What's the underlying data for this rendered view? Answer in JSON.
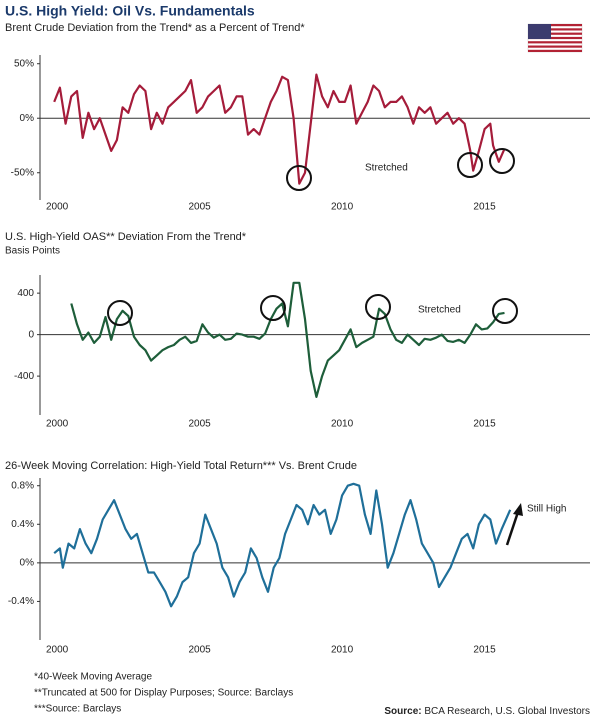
{
  "title": "U.S. High Yield: Oil Vs. Fundamentals",
  "footnotes": [
    "*40-Week Moving Average",
    "**Truncated at 500 for Display Purposes; Source: Barclays",
    "***Source: Barclays"
  ],
  "source_label": "Source:",
  "source": "BCA Research, U.S. Global Investors",
  "chart_data": [
    {
      "type": "line",
      "title": "Brent Crude Deviation from the Trend* as a Percent of Trend*",
      "color": "#a51c3a",
      "x": [
        1999.9,
        2000.1,
        2000.3,
        2000.5,
        2000.7,
        2000.9,
        2001.1,
        2001.3,
        2001.5,
        2001.7,
        2001.9,
        2002.1,
        2002.3,
        2002.5,
        2002.7,
        2002.9,
        2003.1,
        2003.3,
        2003.5,
        2003.7,
        2003.9,
        2004.1,
        2004.3,
        2004.5,
        2004.7,
        2004.9,
        2005.1,
        2005.3,
        2005.5,
        2005.7,
        2005.9,
        2006.1,
        2006.3,
        2006.5,
        2006.7,
        2006.9,
        2007.1,
        2007.3,
        2007.5,
        2007.7,
        2007.9,
        2008.1,
        2008.3,
        2008.5,
        2008.7,
        2008.9,
        2009.1,
        2009.3,
        2009.5,
        2009.7,
        2009.9,
        2010.1,
        2010.3,
        2010.5,
        2010.7,
        2010.9,
        2011.1,
        2011.3,
        2011.5,
        2011.7,
        2011.9,
        2012.1,
        2012.3,
        2012.5,
        2012.7,
        2012.9,
        2013.1,
        2013.3,
        2013.5,
        2013.7,
        2013.9,
        2014.1,
        2014.3,
        2014.5,
        2014.6,
        2014.8,
        2015.0,
        2015.2,
        2015.3,
        2015.5,
        2015.7
      ],
      "values": [
        15,
        28,
        -5,
        20,
        25,
        -18,
        5,
        -10,
        0,
        -15,
        -30,
        -20,
        10,
        5,
        22,
        30,
        25,
        -10,
        5,
        -5,
        10,
        15,
        20,
        25,
        35,
        5,
        10,
        20,
        25,
        30,
        5,
        10,
        20,
        20,
        -15,
        -10,
        -15,
        0,
        15,
        25,
        38,
        35,
        0,
        -60,
        -50,
        -5,
        40,
        20,
        10,
        25,
        15,
        15,
        30,
        -5,
        5,
        15,
        30,
        25,
        10,
        15,
        15,
        20,
        10,
        -5,
        10,
        5,
        10,
        -5,
        0,
        5,
        -5,
        0,
        -5,
        -30,
        -48,
        -30,
        -10,
        -5,
        -25,
        -40,
        -28
      ],
      "xlim": [
        1999.4,
        2018.7
      ],
      "xticks": [
        2000,
        2005,
        2010,
        2015
      ],
      "ylim": [
        -75,
        58
      ],
      "yticks": [
        {
          "value": 50,
          "label": "50%"
        },
        {
          "value": 0,
          "label": "0%"
        },
        {
          "value": -50,
          "label": "-50%"
        }
      ],
      "zero_line": true,
      "annotations": [
        "Stretched"
      ]
    },
    {
      "type": "line",
      "title": "U.S. High-Yield OAS** Deviation From the Trend*",
      "subtitle": "Basis Points",
      "color": "#1e5e3a",
      "x": [
        2000.5,
        2000.7,
        2000.9,
        2001.1,
        2001.3,
        2001.5,
        2001.7,
        2001.9,
        2002.1,
        2002.3,
        2002.5,
        2002.7,
        2002.9,
        2003.1,
        2003.3,
        2003.5,
        2003.7,
        2003.9,
        2004.1,
        2004.3,
        2004.5,
        2004.7,
        2004.9,
        2005.1,
        2005.3,
        2005.5,
        2005.7,
        2005.9,
        2006.1,
        2006.3,
        2006.5,
        2006.7,
        2006.9,
        2007.1,
        2007.3,
        2007.5,
        2007.7,
        2007.9,
        2008.1,
        2008.3,
        2008.5,
        2008.7,
        2008.9,
        2009.1,
        2009.3,
        2009.5,
        2009.7,
        2009.9,
        2010.1,
        2010.3,
        2010.5,
        2010.7,
        2010.9,
        2011.1,
        2011.3,
        2011.5,
        2011.7,
        2011.9,
        2012.1,
        2012.3,
        2012.5,
        2012.7,
        2012.9,
        2013.1,
        2013.3,
        2013.5,
        2013.7,
        2013.9,
        2014.1,
        2014.3,
        2014.5,
        2014.7,
        2014.9,
        2015.1,
        2015.3,
        2015.5,
        2015.7
      ],
      "values": [
        300,
        100,
        -50,
        20,
        -80,
        -20,
        170,
        -50,
        150,
        230,
        180,
        -20,
        -100,
        -150,
        -250,
        -200,
        -150,
        -120,
        -100,
        -50,
        -20,
        -80,
        -60,
        100,
        20,
        -30,
        0,
        -50,
        -40,
        10,
        0,
        -20,
        -20,
        -40,
        10,
        150,
        250,
        300,
        80,
        500,
        500,
        150,
        -350,
        -600,
        -400,
        -250,
        -200,
        -150,
        -50,
        50,
        -120,
        -80,
        -50,
        -20,
        250,
        200,
        50,
        -50,
        -80,
        0,
        -50,
        -100,
        -40,
        -50,
        -30,
        0,
        -60,
        -70,
        -50,
        -80,
        0,
        100,
        50,
        60,
        120,
        200,
        210
      ],
      "xlim": [
        1999.4,
        2018.7
      ],
      "xticks": [
        2000,
        2005,
        2010,
        2015
      ],
      "ylim": [
        -775,
        575
      ],
      "yticks": [
        400,
        0,
        -400
      ],
      "zero_line": true,
      "annotations": [
        "Stretched"
      ]
    },
    {
      "type": "line",
      "title": "26-Week Moving Correlation: High-Yield Total Return*** Vs. Brent Crude",
      "color": "#1f6f99",
      "x": [
        1999.9,
        2000.1,
        2000.2,
        2000.4,
        2000.6,
        2000.8,
        2001.0,
        2001.2,
        2001.4,
        2001.6,
        2001.8,
        2002.0,
        2002.2,
        2002.4,
        2002.6,
        2002.8,
        2003.0,
        2003.2,
        2003.4,
        2003.6,
        2003.8,
        2004.0,
        2004.2,
        2004.4,
        2004.6,
        2004.8,
        2005.0,
        2005.2,
        2005.4,
        2005.6,
        2005.8,
        2006.0,
        2006.2,
        2006.4,
        2006.6,
        2006.8,
        2007.0,
        2007.2,
        2007.4,
        2007.6,
        2007.8,
        2008.0,
        2008.2,
        2008.4,
        2008.6,
        2008.8,
        2009.0,
        2009.2,
        2009.4,
        2009.6,
        2009.8,
        2010.0,
        2010.2,
        2010.4,
        2010.6,
        2010.8,
        2011.0,
        2011.2,
        2011.4,
        2011.6,
        2011.8,
        2012.0,
        2012.2,
        2012.4,
        2012.6,
        2012.8,
        2013.0,
        2013.2,
        2013.4,
        2013.6,
        2013.8,
        2014.0,
        2014.2,
        2014.4,
        2014.6,
        2014.8,
        2015.0,
        2015.2,
        2015.4,
        2015.6,
        2015.9
      ],
      "values": [
        0.1,
        0.15,
        -0.05,
        0.2,
        0.15,
        0.35,
        0.2,
        0.1,
        0.25,
        0.45,
        0.55,
        0.65,
        0.5,
        0.35,
        0.25,
        0.3,
        0.1,
        -0.1,
        -0.1,
        -0.2,
        -0.3,
        -0.45,
        -0.35,
        -0.2,
        -0.15,
        0.1,
        0.2,
        0.5,
        0.35,
        0.2,
        -0.05,
        -0.15,
        -0.35,
        -0.2,
        -0.1,
        0.15,
        0.05,
        -0.15,
        -0.3,
        -0.05,
        0.05,
        0.3,
        0.45,
        0.6,
        0.55,
        0.4,
        0.6,
        0.5,
        0.55,
        0.3,
        0.45,
        0.7,
        0.8,
        0.82,
        0.8,
        0.5,
        0.3,
        0.75,
        0.4,
        -0.05,
        0.1,
        0.3,
        0.5,
        0.65,
        0.45,
        0.2,
        0.1,
        0.0,
        -0.25,
        -0.15,
        -0.05,
        0.1,
        0.25,
        0.3,
        0.15,
        0.4,
        0.5,
        0.45,
        0.2,
        0.35,
        0.55
      ],
      "xlim": [
        1999.4,
        2018.7
      ],
      "xticks": [
        2000,
        2005,
        2010,
        2015
      ],
      "ylim": [
        -0.8,
        0.88
      ],
      "yticks": [
        {
          "value": 0.8,
          "label": "0.8%"
        },
        {
          "value": 0.4,
          "label": "0.4%"
        },
        {
          "value": 0,
          "label": "0%"
        },
        {
          "value": -0.4,
          "label": "-0.4%"
        }
      ],
      "zero_line": true,
      "annotations": [
        "Still High"
      ]
    }
  ]
}
